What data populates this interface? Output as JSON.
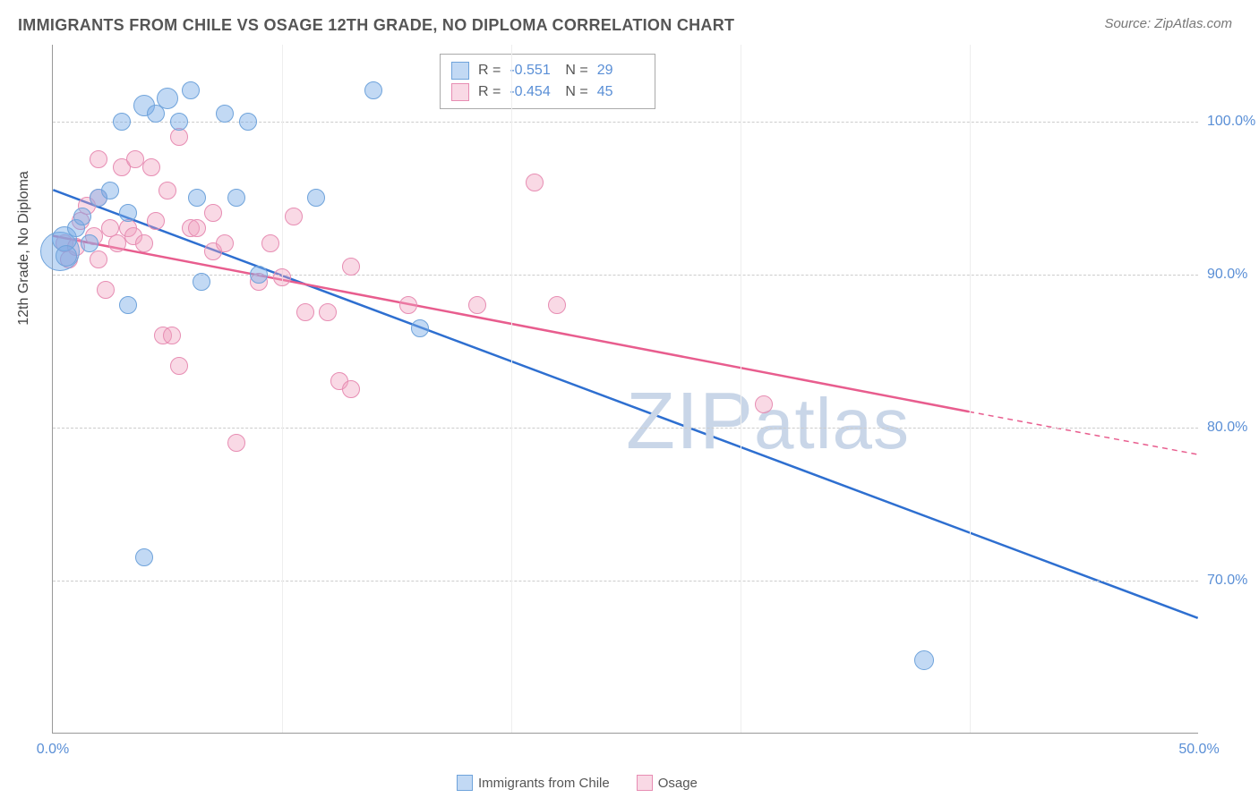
{
  "title": "IMMIGRANTS FROM CHILE VS OSAGE 12TH GRADE, NO DIPLOMA CORRELATION CHART",
  "source": "Source: ZipAtlas.com",
  "ylabel": "12th Grade, No Diploma",
  "watermark": "ZIPatlas",
  "chart": {
    "type": "scatter",
    "xlim": [
      0,
      50
    ],
    "ylim": [
      60,
      105
    ],
    "xticks": [
      {
        "v": 0,
        "l": "0.0%"
      },
      {
        "v": 50,
        "l": "50.0%"
      }
    ],
    "yticks": [
      {
        "v": 70,
        "l": "70.0%"
      },
      {
        "v": 80,
        "l": "80.0%"
      },
      {
        "v": 90,
        "l": "90.0%"
      },
      {
        "v": 100,
        "l": "100.0%"
      }
    ],
    "grid_color": "#cccccc",
    "background": "#ffffff",
    "series": [
      {
        "name": "Immigrants from Chile",
        "color_fill": "rgba(120,170,230,0.45)",
        "color_stroke": "#6fa3db",
        "marker_class": "pt-blue",
        "R": "-0.551",
        "N": "29",
        "trend": {
          "x1": 0,
          "y1": 95.5,
          "x2": 50,
          "y2": 67.5,
          "stroke": "#2e6fd0",
          "width": 2.5,
          "dash_after_x": 50
        },
        "points": [
          {
            "x": 0.3,
            "y": 91.5,
            "r": 22
          },
          {
            "x": 0.5,
            "y": 92.3,
            "r": 14
          },
          {
            "x": 0.6,
            "y": 91.2,
            "r": 12
          },
          {
            "x": 1.0,
            "y": 93.0,
            "r": 10
          },
          {
            "x": 1.3,
            "y": 93.8,
            "r": 10
          },
          {
            "x": 1.6,
            "y": 92.0,
            "r": 10
          },
          {
            "x": 2.0,
            "y": 95.0,
            "r": 10
          },
          {
            "x": 2.5,
            "y": 95.5,
            "r": 10
          },
          {
            "x": 3.0,
            "y": 100.0,
            "r": 10
          },
          {
            "x": 3.3,
            "y": 88.0,
            "r": 10
          },
          {
            "x": 3.3,
            "y": 94.0,
            "r": 10
          },
          {
            "x": 4.0,
            "y": 101.0,
            "r": 12
          },
          {
            "x": 4.5,
            "y": 100.5,
            "r": 10
          },
          {
            "x": 5.0,
            "y": 101.5,
            "r": 12
          },
          {
            "x": 5.5,
            "y": 100.0,
            "r": 10
          },
          {
            "x": 6.0,
            "y": 102.0,
            "r": 10
          },
          {
            "x": 6.3,
            "y": 95.0,
            "r": 10
          },
          {
            "x": 6.5,
            "y": 89.5,
            "r": 10
          },
          {
            "x": 7.5,
            "y": 100.5,
            "r": 10
          },
          {
            "x": 8.0,
            "y": 95.0,
            "r": 10
          },
          {
            "x": 8.5,
            "y": 100.0,
            "r": 10
          },
          {
            "x": 9.0,
            "y": 90.0,
            "r": 10
          },
          {
            "x": 11.5,
            "y": 95.0,
            "r": 10
          },
          {
            "x": 14.0,
            "y": 102.0,
            "r": 10
          },
          {
            "x": 4.0,
            "y": 71.5,
            "r": 10
          },
          {
            "x": 16.0,
            "y": 86.5,
            "r": 10
          },
          {
            "x": 38.0,
            "y": 64.8,
            "r": 11
          }
        ]
      },
      {
        "name": "Osage",
        "color_fill": "rgba(240,160,190,0.4)",
        "color_stroke": "#e78db3",
        "marker_class": "pt-pink",
        "R": "-0.454",
        "N": "45",
        "trend": {
          "x1": 0,
          "y1": 92.5,
          "x2": 40,
          "y2": 81.0,
          "stroke": "#e85d8e",
          "width": 2.5,
          "dash_after_x": 40,
          "x3": 50,
          "y3": 78.2
        },
        "points": [
          {
            "x": 0.5,
            "y": 92.0,
            "r": 10
          },
          {
            "x": 0.7,
            "y": 91.0,
            "r": 10
          },
          {
            "x": 1.0,
            "y": 91.8,
            "r": 10
          },
          {
            "x": 1.2,
            "y": 93.5,
            "r": 10
          },
          {
            "x": 1.5,
            "y": 94.5,
            "r": 10
          },
          {
            "x": 1.8,
            "y": 92.5,
            "r": 10
          },
          {
            "x": 2.0,
            "y": 91.0,
            "r": 10
          },
          {
            "x": 2.0,
            "y": 95.0,
            "r": 10
          },
          {
            "x": 2.0,
            "y": 97.5,
            "r": 10
          },
          {
            "x": 2.3,
            "y": 89.0,
            "r": 10
          },
          {
            "x": 2.5,
            "y": 93.0,
            "r": 10
          },
          {
            "x": 2.8,
            "y": 92.0,
            "r": 10
          },
          {
            "x": 3.0,
            "y": 97.0,
            "r": 10
          },
          {
            "x": 3.3,
            "y": 93.0,
            "r": 10
          },
          {
            "x": 3.5,
            "y": 92.5,
            "r": 10
          },
          {
            "x": 3.6,
            "y": 97.5,
            "r": 10
          },
          {
            "x": 4.0,
            "y": 92.0,
            "r": 10
          },
          {
            "x": 4.3,
            "y": 97.0,
            "r": 10
          },
          {
            "x": 4.5,
            "y": 93.5,
            "r": 10
          },
          {
            "x": 4.8,
            "y": 86.0,
            "r": 10
          },
          {
            "x": 5.0,
            "y": 95.5,
            "r": 10
          },
          {
            "x": 5.2,
            "y": 86.0,
            "r": 10
          },
          {
            "x": 5.5,
            "y": 84.0,
            "r": 10
          },
          {
            "x": 5.5,
            "y": 99.0,
            "r": 10
          },
          {
            "x": 6.0,
            "y": 93.0,
            "r": 10
          },
          {
            "x": 6.3,
            "y": 93.0,
            "r": 10
          },
          {
            "x": 7.0,
            "y": 94.0,
            "r": 10
          },
          {
            "x": 7.0,
            "y": 91.5,
            "r": 10
          },
          {
            "x": 7.5,
            "y": 92.0,
            "r": 10
          },
          {
            "x": 8.0,
            "y": 79.0,
            "r": 10
          },
          {
            "x": 9.0,
            "y": 89.5,
            "r": 10
          },
          {
            "x": 9.5,
            "y": 92.0,
            "r": 10
          },
          {
            "x": 10.0,
            "y": 89.8,
            "r": 10
          },
          {
            "x": 10.5,
            "y": 93.8,
            "r": 10
          },
          {
            "x": 11.0,
            "y": 87.5,
            "r": 10
          },
          {
            "x": 12.0,
            "y": 87.5,
            "r": 10
          },
          {
            "x": 12.5,
            "y": 83.0,
            "r": 10
          },
          {
            "x": 13.0,
            "y": 82.5,
            "r": 10
          },
          {
            "x": 13.0,
            "y": 90.5,
            "r": 10
          },
          {
            "x": 15.5,
            "y": 88.0,
            "r": 10
          },
          {
            "x": 18.5,
            "y": 88.0,
            "r": 10
          },
          {
            "x": 21.0,
            "y": 96.0,
            "r": 10
          },
          {
            "x": 22.0,
            "y": 88.0,
            "r": 10
          },
          {
            "x": 31.0,
            "y": 81.5,
            "r": 10
          }
        ]
      }
    ],
    "legend_bottom": [
      {
        "label": "Immigrants from Chile",
        "class": "sw-blue"
      },
      {
        "label": "Osage",
        "class": "sw-pink"
      }
    ]
  }
}
